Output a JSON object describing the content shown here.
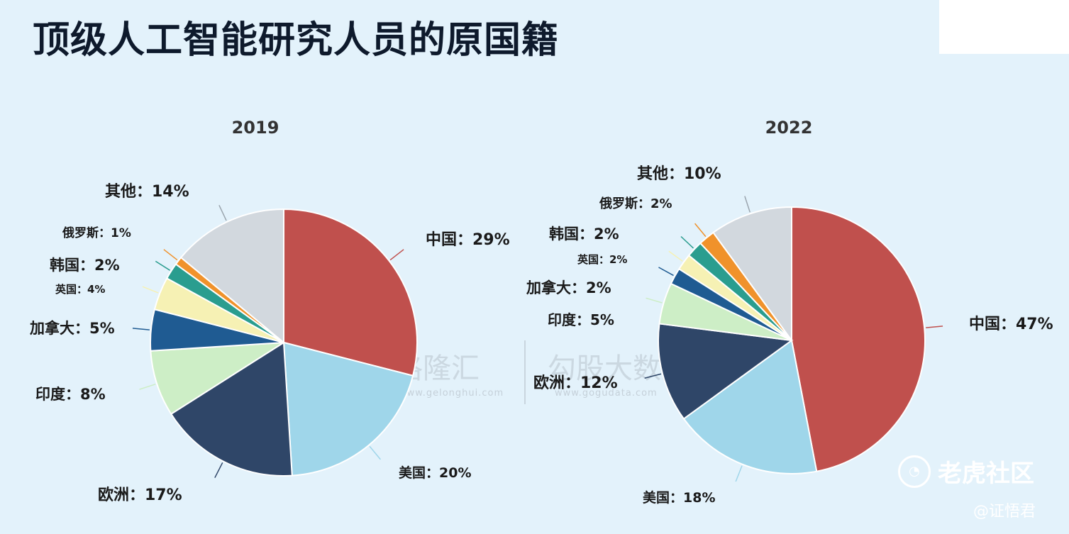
{
  "title": "顶级人工智能研究人员的原国籍",
  "watermarks": {
    "gelonghui": "格隆汇",
    "gelonghui_url": "www.gelonghui.com",
    "gogudata": "勾股大数据",
    "gogudata_url": "www.gogudata.com",
    "tiger": "老虎社区",
    "user": "@证悟君"
  },
  "chart_data": [
    {
      "type": "pie",
      "title": "2019",
      "slices": [
        {
          "label": "中国",
          "value": 29,
          "display": "中国：29%",
          "color": "#c0504d"
        },
        {
          "label": "美国",
          "value": 20,
          "display": "美国：20%",
          "color": "#9fd6ea"
        },
        {
          "label": "欧洲",
          "value": 17,
          "display": "欧洲：17%",
          "color": "#2f4668"
        },
        {
          "label": "印度",
          "value": 8,
          "display": "印度：8%",
          "color": "#cdeec6"
        },
        {
          "label": "加拿大",
          "value": 5,
          "display": "加拿大：5%",
          "color": "#1f5b92"
        },
        {
          "label": "英国",
          "value": 4,
          "display": "英国：4%",
          "color": "#f6f1b4"
        },
        {
          "label": "韩国",
          "value": 2,
          "display": "韩国：2%",
          "color": "#2a9d8f"
        },
        {
          "label": "俄罗斯",
          "value": 1,
          "display": "俄罗斯：1%",
          "color": "#f0922b"
        },
        {
          "label": "其他",
          "value": 14,
          "display": "其他：14%",
          "color": "#d2d8de"
        }
      ]
    },
    {
      "type": "pie",
      "title": "2022",
      "slices": [
        {
          "label": "中国",
          "value": 47,
          "display": "中国：47%",
          "color": "#c0504d"
        },
        {
          "label": "美国",
          "value": 18,
          "display": "美国：18%",
          "color": "#9fd6ea"
        },
        {
          "label": "欧洲",
          "value": 12,
          "display": "欧洲：12%",
          "color": "#2f4668"
        },
        {
          "label": "印度",
          "value": 5,
          "display": "印度：5%",
          "color": "#cdeec6"
        },
        {
          "label": "加拿大",
          "value": 2,
          "display": "加拿大：2%",
          "color": "#1f5b92"
        },
        {
          "label": "英国",
          "value": 2,
          "display": "英国：2%",
          "color": "#f6f1b4"
        },
        {
          "label": "韩国",
          "value": 2,
          "display": "韩国：2%",
          "color": "#2a9d8f"
        },
        {
          "label": "俄罗斯",
          "value": 2,
          "display": "俄罗斯：2%",
          "color": "#f0922b"
        },
        {
          "label": "其他",
          "value": 10,
          "display": "其他：10%",
          "color": "#d2d8de"
        }
      ]
    }
  ]
}
